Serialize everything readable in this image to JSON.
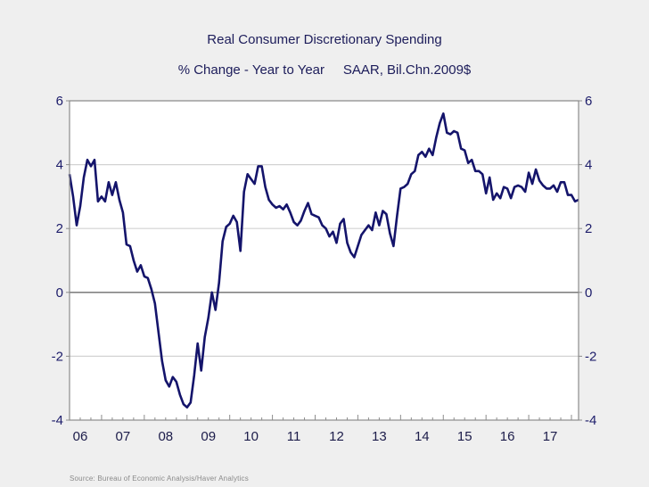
{
  "chart_data": {
    "type": "line",
    "title": "Real Consumer Discretionary Spending",
    "subtitle": "% Change - Year to Year     SAAR, Bil.Chn.2009$",
    "xlabel": "",
    "ylabel": "",
    "ylim": [
      -4,
      6
    ],
    "yticks": [
      -4,
      -2,
      0,
      2,
      4,
      6
    ],
    "ytick_labels": [
      "-4",
      "-2",
      "0",
      "2",
      "4",
      "6"
    ],
    "x_tick_labels": [
      "06",
      "07",
      "08",
      "09",
      "10",
      "11",
      "12",
      "13",
      "14",
      "15",
      "16",
      "17"
    ],
    "x_frequency": "monthly",
    "x_start": "2006-04",
    "x_end": "2018-03",
    "grid": true,
    "zero_line": true,
    "line_color": "#14146b",
    "source": "Source:  Bureau of Economic Analysis/Haver Analytics",
    "series": [
      {
        "name": "Real Consumer Discretionary Spending, % Chg Y/Y",
        "values": [
          3.7,
          3.0,
          2.1,
          2.7,
          3.6,
          4.15,
          3.95,
          4.15,
          2.85,
          3.0,
          2.85,
          3.45,
          3.05,
          3.45,
          2.9,
          2.5,
          1.5,
          1.45,
          1.0,
          0.65,
          0.85,
          0.5,
          0.45,
          0.1,
          -0.35,
          -1.25,
          -2.15,
          -2.75,
          -2.95,
          -2.65,
          -2.8,
          -3.2,
          -3.5,
          -3.6,
          -3.45,
          -2.6,
          -1.6,
          -2.45,
          -1.4,
          -0.8,
          0.0,
          -0.55,
          0.3,
          1.6,
          2.05,
          2.15,
          2.4,
          2.2,
          1.3,
          3.15,
          3.7,
          3.55,
          3.4,
          3.95,
          3.95,
          3.3,
          2.9,
          2.75,
          2.65,
          2.7,
          2.6,
          2.75,
          2.5,
          2.2,
          2.1,
          2.25,
          2.55,
          2.8,
          2.45,
          2.4,
          2.35,
          2.1,
          2.0,
          1.75,
          1.9,
          1.55,
          2.15,
          2.3,
          1.55,
          1.25,
          1.1,
          1.45,
          1.8,
          1.95,
          2.1,
          1.95,
          2.5,
          2.1,
          2.55,
          2.45,
          1.85,
          1.45,
          2.4,
          3.25,
          3.3,
          3.4,
          3.7,
          3.8,
          4.3,
          4.4,
          4.25,
          4.5,
          4.3,
          4.85,
          5.3,
          5.6,
          5.0,
          4.95,
          5.05,
          5.0,
          4.5,
          4.45,
          4.05,
          4.15,
          3.8,
          3.8,
          3.7,
          3.1,
          3.6,
          2.9,
          3.1,
          2.95,
          3.3,
          3.25,
          2.95,
          3.3,
          3.35,
          3.3,
          3.15,
          3.75,
          3.4,
          3.85,
          3.5,
          3.35,
          3.25,
          3.25,
          3.35,
          3.15,
          3.45,
          3.45,
          3.05,
          3.05,
          2.85,
          2.9
        ]
      }
    ]
  }
}
